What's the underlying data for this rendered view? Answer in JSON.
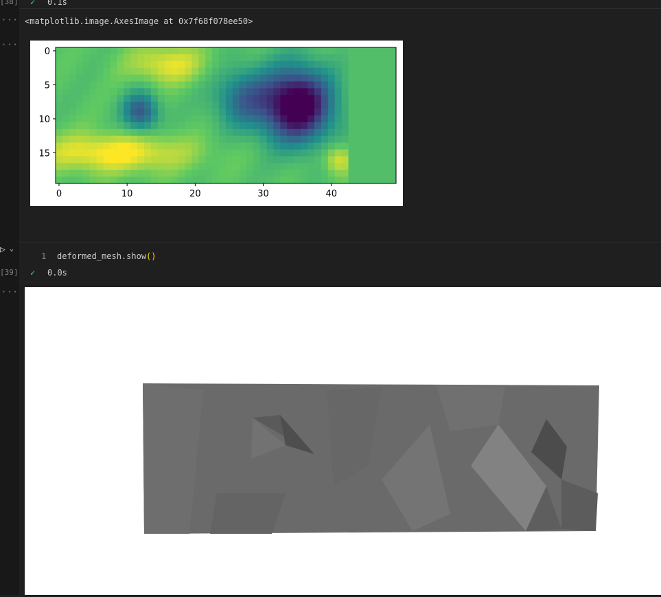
{
  "cell38": {
    "execution_count": "[38]",
    "status_icon": "check-icon",
    "duration": "0.1s",
    "output_repr": "<matplotlib.image.AxesImage at 0x7f68f078ee50>"
  },
  "output_menu": "···",
  "cell39": {
    "execution_count": "[39]",
    "line_number": "1",
    "code_name": "deformed_mesh.show",
    "code_parens": "()",
    "status_icon": "check-icon",
    "duration": "0.0s"
  },
  "chart_data": {
    "type": "heatmap",
    "title": "",
    "xlabel": "",
    "ylabel": "",
    "cols": 50,
    "rows": 20,
    "colormap": "viridis",
    "x_ticks": [
      "0",
      "10",
      "20",
      "30",
      "40"
    ],
    "y_ticks": [
      "0",
      "5",
      "10",
      "15"
    ],
    "xlim": [
      -0.5,
      49.5
    ],
    "ylim": [
      19.5,
      -0.5
    ],
    "features": [
      {
        "cx": 12,
        "cy": 9,
        "sx": 1.8,
        "sy": 2.0,
        "v": -0.45
      },
      {
        "cx": 35,
        "cy": 8,
        "sx": 3.6,
        "sy": 3.8,
        "v": -0.85
      },
      {
        "cx": 27,
        "cy": 7,
        "sx": 3.0,
        "sy": 3.0,
        "v": -0.35
      },
      {
        "cx": 16,
        "cy": 2,
        "sx": 4,
        "sy": 2,
        "v": 0.25
      },
      {
        "cx": 8,
        "cy": 15,
        "sx": 8,
        "sy": 2.0,
        "v": 0.3
      },
      {
        "cx": 41,
        "cy": 16,
        "sx": 1.5,
        "sy": 1.5,
        "v": 0.25
      }
    ]
  },
  "mesh": {
    "fill": "#6a6a6a",
    "shade_dark": "#4e4e4e",
    "shade_light": "#868686"
  }
}
